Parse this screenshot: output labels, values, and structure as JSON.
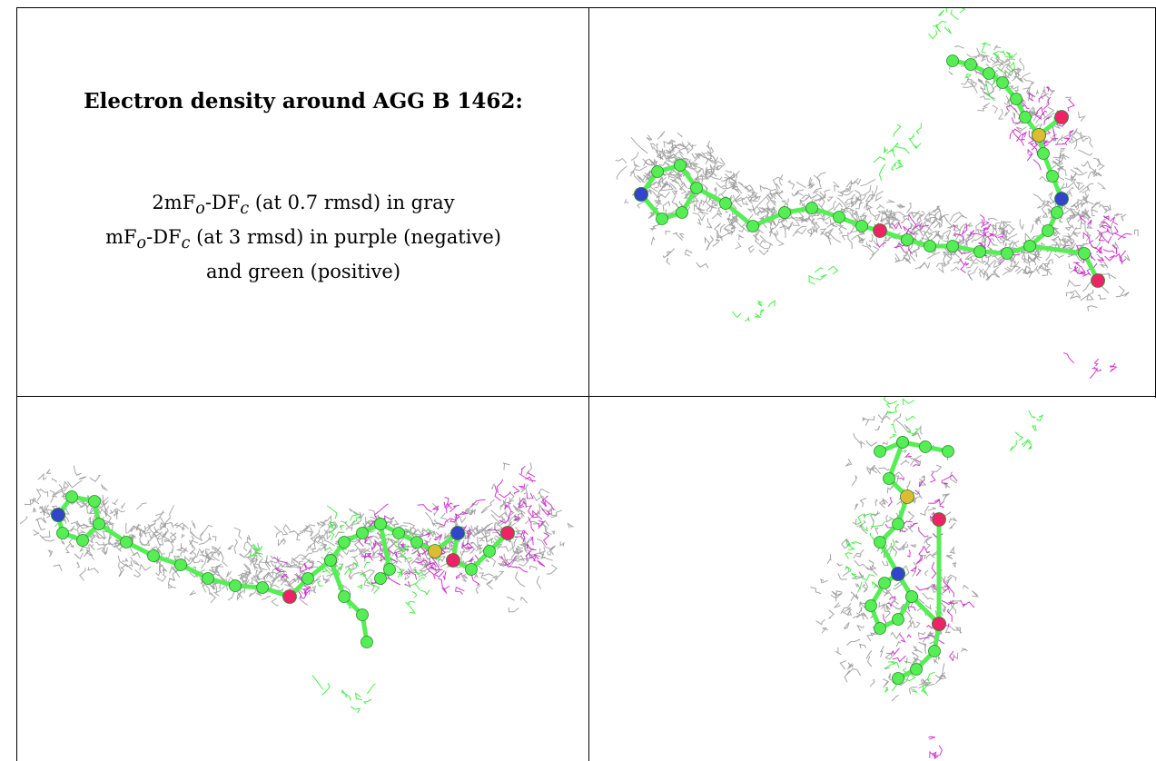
{
  "table": {
    "title": "Electron density around AGG B 1462:",
    "legend": {
      "line1": {
        "prefix": "2mF",
        "sub1": "o",
        "mid": "-DF",
        "sub2": "c",
        "rest": " (at 0.7 rmsd) in gray"
      },
      "line2": {
        "prefix": "mF",
        "sub1": "o",
        "mid": "-DF",
        "sub2": "c",
        "rest": " (at 3 rmsd) in purple (negative)"
      },
      "line3": "and green (positive)"
    }
  },
  "colors": {
    "mesh_gray": "#9a9a9a",
    "mesh_green": "#33ee33",
    "mesh_purple": "#cc22cc",
    "atom_carbon": "#55ee55",
    "atom_nitrogen": "#3344cc",
    "atom_oxygen": "#ee2266",
    "atom_sulfur": "#ddbb33"
  },
  "panels": [
    {
      "name": "view-top-right"
    },
    {
      "name": "view-bottom-left"
    },
    {
      "name": "view-bottom-right"
    }
  ]
}
